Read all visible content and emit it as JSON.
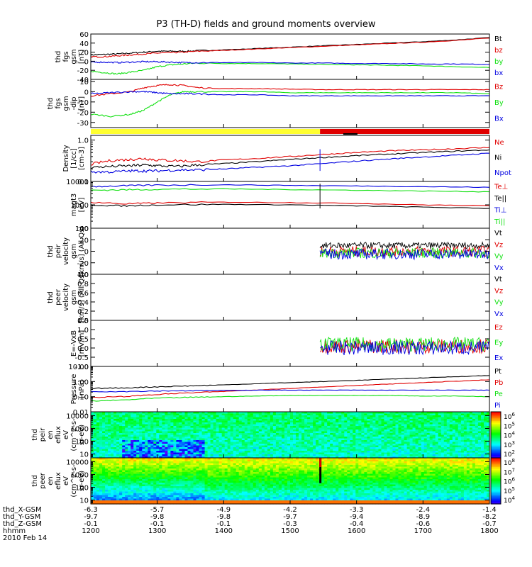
{
  "title": "P3 (TH-D) fields and ground moments overview",
  "colors": {
    "black": "#000000",
    "red": "#e00000",
    "green": "#10e010",
    "blue": "#0000e0",
    "yellow": "#ffff30"
  },
  "chart_data": [
    {
      "id": "fgs_gsm",
      "type": "line",
      "ylabel": [
        "thd",
        "fgs",
        "gsm",
        "[nT]"
      ],
      "ylim": [
        -40,
        60
      ],
      "yticks": [
        -40,
        -20,
        0,
        20,
        40,
        60
      ],
      "series": [
        {
          "name": "Bt",
          "color": "black",
          "x": [
            1200,
            1220,
            1240,
            1260,
            1280,
            1300,
            1320,
            1340,
            1360,
            1400,
            1450,
            1500,
            1550,
            1600,
            1650,
            1700,
            1750,
            1800
          ],
          "y": [
            14,
            15,
            16,
            18,
            20,
            22,
            22,
            22,
            23,
            25,
            28,
            31,
            34,
            37,
            40,
            43,
            47,
            52
          ]
        },
        {
          "name": "bz",
          "color": "red",
          "x": [
            1200,
            1220,
            1240,
            1260,
            1280,
            1300,
            1320,
            1340,
            1360,
            1400,
            1450,
            1500,
            1550,
            1600,
            1650,
            1700,
            1750,
            1800
          ],
          "y": [
            10,
            10,
            12,
            14,
            16,
            18,
            19,
            20,
            22,
            24,
            27,
            30,
            33,
            36,
            39,
            42,
            46,
            51
          ]
        },
        {
          "name": "by",
          "color": "green",
          "x": [
            1200,
            1220,
            1240,
            1260,
            1280,
            1300,
            1320,
            1340,
            1360,
            1400,
            1450,
            1500,
            1550,
            1600,
            1650,
            1700,
            1750,
            1800
          ],
          "y": [
            -22,
            -25,
            -28,
            -24,
            -20,
            -12,
            -8,
            -6,
            -4,
            -5,
            -5,
            -6,
            -7,
            -8,
            -9,
            -10,
            -12,
            -14
          ]
        },
        {
          "name": "bx",
          "color": "blue",
          "x": [
            1200,
            1220,
            1240,
            1260,
            1280,
            1300,
            1320,
            1340,
            1360,
            1400,
            1450,
            1500,
            1550,
            1600,
            1650,
            1700,
            1750,
            1800
          ],
          "y": [
            -2,
            -2,
            -3,
            -2,
            -1,
            -1,
            -2,
            -3,
            -3,
            -3,
            -3,
            -4,
            -4,
            -5,
            -5,
            -6,
            -6,
            -7
          ]
        }
      ]
    },
    {
      "id": "fgs_dsl",
      "type": "line",
      "ylabel": [
        "thd",
        "fgs",
        "gsm",
        "-dip",
        "[nT]"
      ],
      "ylim": [
        -35,
        12
      ],
      "yticks": [
        -30,
        -20,
        -10,
        0,
        10
      ],
      "series": [
        {
          "name": "Bz",
          "color": "red",
          "x": [
            1200,
            1230,
            1260,
            1280,
            1300,
            1320,
            1340,
            1360,
            1400,
            1450,
            1500,
            1550,
            1600,
            1650,
            1700,
            1750,
            1800
          ],
          "y": [
            -4,
            -2,
            0,
            4,
            6,
            7,
            6,
            4,
            3,
            3,
            2.5,
            2,
            2,
            2,
            2,
            2,
            2
          ]
        },
        {
          "name": "By",
          "color": "green",
          "x": [
            1200,
            1230,
            1260,
            1280,
            1300,
            1320,
            1340,
            1360,
            1400,
            1450,
            1500,
            1550,
            1600,
            1650,
            1700,
            1750,
            1800
          ],
          "y": [
            -22,
            -24,
            -22,
            -18,
            -10,
            -3,
            0,
            0,
            0,
            0,
            -1,
            -1,
            -1,
            -1,
            -1,
            -1,
            -2
          ]
        },
        {
          "name": "Bx",
          "color": "blue",
          "x": [
            1200,
            1230,
            1260,
            1280,
            1300,
            1320,
            1340,
            1360,
            1400,
            1450,
            1500,
            1550,
            1600,
            1650,
            1700,
            1750,
            1800
          ],
          "y": [
            -2,
            -1,
            0,
            0,
            -1,
            -2,
            -2,
            -2,
            -3,
            -3,
            -4,
            -4,
            -4,
            -4,
            -4,
            -4,
            -4
          ]
        }
      ]
    },
    {
      "id": "density",
      "type": "line",
      "log": true,
      "ylabel": [
        "Density",
        "[1/cc]",
        "[cm-3]"
      ],
      "ylim": [
        0.1,
        1.3
      ],
      "yticks": [
        0.1,
        1.0
      ],
      "ytick_labels": [
        "0.1",
        "1.0"
      ],
      "series": [
        {
          "name": "Ne",
          "color": "red",
          "x": [
            1200,
            1230,
            1260,
            1280,
            1300,
            1330,
            1360,
            1400,
            1450,
            1500,
            1550,
            1600,
            1650,
            1700,
            1750,
            1800
          ],
          "y": [
            0.26,
            0.32,
            0.34,
            0.36,
            0.33,
            0.32,
            0.3,
            0.33,
            0.36,
            0.4,
            0.45,
            0.5,
            0.55,
            0.58,
            0.62,
            0.66
          ]
        },
        {
          "name": "Ni",
          "color": "black",
          "x": [
            1200,
            1230,
            1260,
            1280,
            1300,
            1330,
            1360,
            1400,
            1450,
            1500,
            1550,
            1600,
            1650,
            1700,
            1750,
            1800
          ],
          "y": [
            0.22,
            0.23,
            0.24,
            0.25,
            0.24,
            0.23,
            0.25,
            0.27,
            0.3,
            0.34,
            0.38,
            0.42,
            0.46,
            0.5,
            0.54,
            0.58
          ]
        },
        {
          "name": "Npot",
          "color": "blue",
          "x": [
            1200,
            1230,
            1260,
            1280,
            1300,
            1330,
            1360,
            1400,
            1450,
            1500,
            1550,
            1600,
            1650,
            1700,
            1750,
            1800
          ],
          "y": [
            0.17,
            0.17,
            0.18,
            0.18,
            0.18,
            0.19,
            0.19,
            0.2,
            0.22,
            0.24,
            0.27,
            0.31,
            0.35,
            0.39,
            0.43,
            0.48
          ]
        }
      ]
    },
    {
      "id": "magt3",
      "type": "line",
      "log": true,
      "ylabel": [
        "magt3",
        "[eV]"
      ],
      "ylim": [
        100,
        10000
      ],
      "yticks": [
        100,
        1000,
        10000
      ],
      "ytick_labels": [
        "100",
        "1000",
        "10000"
      ],
      "series": [
        {
          "name": "Te⊥",
          "color": "red",
          "x": [
            1200,
            1250,
            1300,
            1400,
            1500,
            1600,
            1700,
            1800
          ],
          "y": [
            1300,
            1100,
            1200,
            1300,
            1250,
            1150,
            1000,
            900
          ]
        },
        {
          "name": "Te||",
          "color": "black",
          "x": [
            1200,
            1250,
            1300,
            1400,
            1500,
            1600,
            1700,
            1800
          ],
          "y": [
            1000,
            900,
            1000,
            1050,
            1000,
            900,
            800,
            700
          ]
        },
        {
          "name": "Ti⊥",
          "color": "blue",
          "x": [
            1200,
            1250,
            1300,
            1400,
            1500,
            1600,
            1700,
            1800
          ],
          "y": [
            6000,
            6500,
            7000,
            7200,
            6800,
            6400,
            6000,
            5600
          ]
        },
        {
          "name": "Ti||",
          "color": "green",
          "x": [
            1200,
            1250,
            1300,
            1400,
            1500,
            1600,
            1700,
            1800
          ],
          "y": [
            4200,
            4400,
            4600,
            4800,
            4500,
            4200,
            3900,
            3600
          ]
        }
      ]
    },
    {
      "id": "peir_velocity",
      "type": "line",
      "ylabel": [
        "thd",
        "peir",
        "velocity",
        "gsm",
        "[km/s] (All Qs)"
      ],
      "ylim": [
        -40,
        40
      ],
      "yticks": [
        -40,
        -20,
        0,
        20,
        40
      ],
      "series": [
        {
          "name": "Vt",
          "color": "black",
          "x": [
            1545,
            1800
          ],
          "y": [
            10,
            10
          ]
        },
        {
          "name": "Vz",
          "color": "red",
          "x": [
            1545,
            1800
          ],
          "y": [
            0,
            0
          ]
        },
        {
          "name": "Vy",
          "color": "green",
          "x": [
            1545,
            1800
          ],
          "y": [
            -3,
            -3
          ]
        },
        {
          "name": "Vx",
          "color": "blue",
          "x": [
            1545,
            1800
          ],
          "y": [
            -5,
            -5
          ]
        }
      ]
    },
    {
      "id": "peer_velocity",
      "type": "line",
      "ylabel": [
        "thd",
        "peer",
        "velocity",
        "gsm",
        "[km/s] (All Qs)"
      ],
      "ylim": [
        0,
        1
      ],
      "yticks": [
        0,
        0.2,
        0.4,
        0.6,
        0.8,
        1.0
      ],
      "ytick_labels": [
        "0.0",
        "0.2",
        "0.4",
        "0.6",
        "0.8",
        "1.0"
      ],
      "series": [
        {
          "name": "Vt",
          "color": "black",
          "x": [],
          "y": []
        },
        {
          "name": "Vz",
          "color": "red",
          "x": [],
          "y": []
        },
        {
          "name": "Vy",
          "color": "green",
          "x": [],
          "y": []
        },
        {
          "name": "Vx",
          "color": "blue",
          "x": [],
          "y": []
        }
      ]
    },
    {
      "id": "efield",
      "type": "line",
      "ylabel": [
        "E=-VxB",
        "[mV/m]"
      ],
      "ylim": [
        -1,
        1.5
      ],
      "yticks": [
        -1,
        -0.5,
        0,
        0.5,
        1,
        1.5
      ],
      "ytick_labels": [
        "-1.0",
        "-0.5",
        "0.0",
        "0.5",
        "1.0",
        "1.5"
      ],
      "series": [
        {
          "name": "Ez",
          "color": "red",
          "x": [
            1545,
            1800
          ],
          "y": [
            0.1,
            0.1
          ]
        },
        {
          "name": "Ey",
          "color": "green",
          "x": [
            1545,
            1800
          ],
          "y": [
            0.2,
            0.2
          ]
        },
        {
          "name": "Ex",
          "color": "blue",
          "x": [
            1545,
            1800
          ],
          "y": [
            0.0,
            0.0
          ]
        }
      ]
    },
    {
      "id": "pressure",
      "type": "line",
      "log": true,
      "ylabel": [
        "Pressure",
        "[nPa]"
      ],
      "ylim": [
        0.01,
        10
      ],
      "yticks": [
        0.01,
        0.1,
        1,
        10
      ],
      "ytick_labels": [
        "0.01",
        "0.10",
        "1.00",
        "10.00"
      ],
      "series": [
        {
          "name": "Pt",
          "color": "black",
          "x": [
            1200,
            1250,
            1300,
            1350,
            1400,
            1450,
            1500,
            1550,
            1600,
            1650,
            1700,
            1750,
            1800
          ],
          "y": [
            0.35,
            0.38,
            0.45,
            0.52,
            0.6,
            0.72,
            0.85,
            1.0,
            1.2,
            1.45,
            1.75,
            2.1,
            2.5
          ]
        },
        {
          "name": "Pb",
          "color": "red",
          "x": [
            1200,
            1250,
            1300,
            1350,
            1400,
            1450,
            1500,
            1550,
            1600,
            1650,
            1700,
            1750,
            1800
          ],
          "y": [
            0.09,
            0.1,
            0.14,
            0.18,
            0.22,
            0.28,
            0.35,
            0.44,
            0.55,
            0.68,
            0.85,
            1.05,
            1.3
          ]
        },
        {
          "name": "Pe",
          "color": "green",
          "x": [
            1200,
            1250,
            1300,
            1350,
            1400,
            1450,
            1500,
            1550,
            1600,
            1650,
            1700,
            1750,
            1800
          ],
          "y": [
            0.05,
            0.06,
            0.08,
            0.09,
            0.1,
            0.11,
            0.12,
            0.12,
            0.12,
            0.12,
            0.11,
            0.11,
            0.1
          ]
        },
        {
          "name": "Pi",
          "color": "blue",
          "x": [
            1200,
            1250,
            1300,
            1350,
            1400,
            1450,
            1500,
            1550,
            1600,
            1650,
            1700,
            1750,
            1800
          ],
          "y": [
            0.22,
            0.22,
            0.24,
            0.25,
            0.26,
            0.27,
            0.27,
            0.27,
            0.27,
            0.27,
            0.27,
            0.27,
            0.27
          ]
        }
      ]
    },
    {
      "id": "peir_spec",
      "type": "heatmap",
      "log": true,
      "ylabel": [
        "thd",
        "peir",
        "en",
        "eflux",
        "eV",
        "(cm^2-s-",
        "sr-eV)"
      ],
      "ylim": [
        5,
        20000
      ],
      "yticks": [
        10,
        100,
        1000,
        10000
      ],
      "ytick_labels": [
        "10",
        "100",
        "1000",
        "10000"
      ],
      "colorbar_labels": [
        "10^2",
        "10^3",
        "10^4",
        "10^5",
        "10^6"
      ]
    },
    {
      "id": "peer_spec",
      "type": "heatmap",
      "log": true,
      "ylabel": [
        "thd",
        "peer",
        "en",
        "eflux",
        "eV",
        "(cm^2-s-",
        "sr-eV)"
      ],
      "ylim": [
        5,
        20000
      ],
      "yticks": [
        10,
        100,
        1000,
        10000
      ],
      "ytick_labels": [
        "10",
        "100",
        "1000",
        "10000"
      ],
      "colorbar_labels": [
        "10^4",
        "10^5",
        "10^6",
        "10^7",
        "10^8"
      ]
    }
  ],
  "xaxis": {
    "range": [
      1200,
      1800
    ],
    "rows": [
      {
        "label": "thd_X-GSM",
        "values": [
          "-6.3",
          "-5.7",
          "-4.9",
          "-4.2",
          "-3.3",
          "-2.4",
          "-1.4"
        ]
      },
      {
        "label": "thd_Y-GSM",
        "values": [
          "-9.7",
          "-9.8",
          "-9.8",
          "-9.7",
          "-9.4",
          "-8.9",
          "-8.2"
        ]
      },
      {
        "label": "thd_Z-GSM",
        "values": [
          "-0.1",
          "-0.1",
          "-0.1",
          "-0.3",
          "-0.4",
          "-0.6",
          "-0.7"
        ]
      },
      {
        "label": "hhmm",
        "values": [
          "1200",
          "1300",
          "1400",
          "1500",
          "1600",
          "1700",
          "1800"
        ]
      }
    ],
    "date": "2010 Feb 14"
  }
}
